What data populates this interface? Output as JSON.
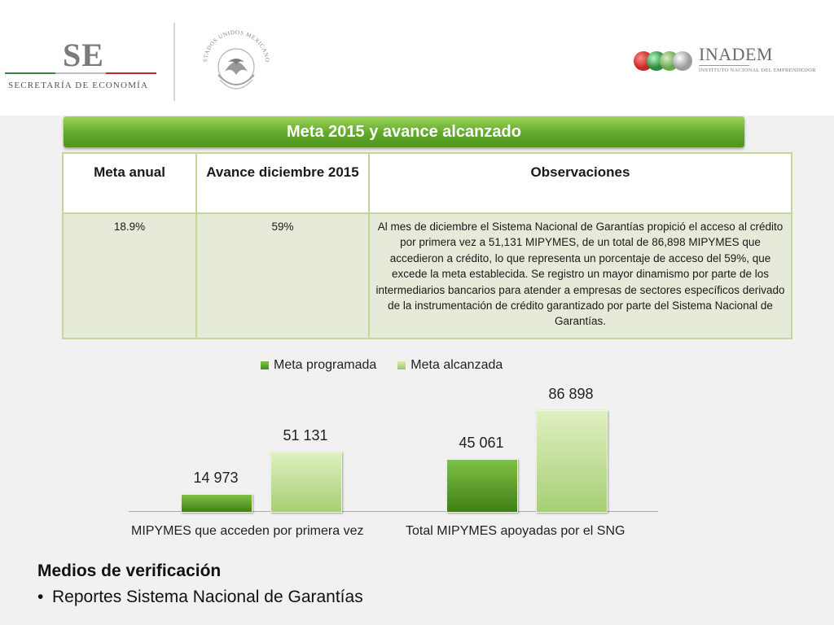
{
  "header": {
    "se_logo_text": "SE",
    "se_subtitle": "SECRETARÍA DE ECONOMÍA",
    "seal_text": "ESTADOS UNIDOS MEXICANOS",
    "inadem_name": "INADEM",
    "inadem_subtitle": "INSTITUTO NACIONAL DEL EMPRENDEDOR",
    "colors": {
      "green": "#2e8b3d",
      "red": "#c62828",
      "gray": "#bdbdbd"
    }
  },
  "banner": {
    "title": "Meta 2015 y avance alcanzado",
    "color": "#62a92a"
  },
  "table": {
    "headers": [
      "Meta anual",
      "Avance diciembre 2015",
      "Observaciones"
    ],
    "row": {
      "meta_anual": "18.9%",
      "avance": "59%",
      "observaciones": "Al mes de diciembre el Sistema Nacional de Garantías propició el acceso al crédito por primera vez a 51,131 MIPYMES, de un total de 86,898 MIPYMES que accedieron a crédito, lo que representa un porcentaje de acceso del 59%, que excede la meta establecida. Se registro un mayor dinamismo por parte de los intermediarios bancarios para atender a empresas de sectores específicos derivado de la instrumentación de crédito garantizado por parte del Sistema Nacional de Garantías."
    }
  },
  "chart_data": {
    "type": "bar",
    "categories": [
      "MIPYMES que acceden por primera vez",
      "Total MIPYMES apoyadas por el SNG"
    ],
    "series": [
      {
        "name": "Meta programada",
        "values": [
          14973,
          45061
        ],
        "labels": [
          "14 973",
          "45 061"
        ],
        "color": "#5da52a"
      },
      {
        "name": "Meta alcanzada",
        "values": [
          51131,
          86898
        ],
        "labels": [
          "51 131",
          "86 898"
        ],
        "color": "#bedd93"
      }
    ],
    "ylim": [
      0,
      90000
    ],
    "legend": "top",
    "grid": false
  },
  "verification": {
    "heading": "Medios de verificación",
    "bullet_symbol": "•",
    "items": [
      "Reportes Sistema Nacional de Garantías"
    ]
  }
}
